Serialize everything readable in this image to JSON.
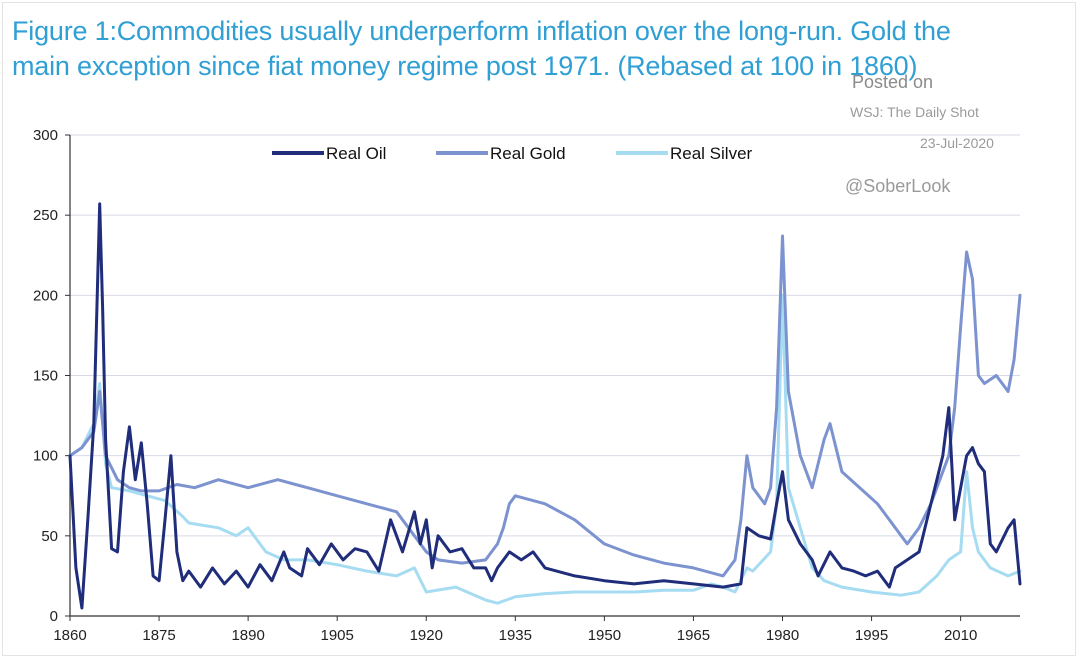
{
  "title_line1": "Figure 1:Commodities usually underperform inflation over the long-run. Gold the",
  "title_line2": "main exception since fiat money regime post 1971. (Rebased at 100 in 1860)",
  "watermark": {
    "posted": "Posted on",
    "source": "WSJ: The Daily Shot",
    "date": "23-Jul-2020",
    "handle": "@SoberLook"
  },
  "colors": {
    "oil": "#1f2d7a",
    "gold": "#7c93cf",
    "silver": "#a6dcf2",
    "grid": "#d7d9e6",
    "title": "#2f9fd4"
  },
  "chart_data": {
    "type": "line",
    "title": "Figure 1:Commodities usually underperform inflation over the long-run. Gold the main exception since fiat money regime post 1971. (Rebased at 100 in 1860)",
    "xlabel": "",
    "ylabel": "",
    "xlim": [
      1860,
      2020
    ],
    "ylim": [
      0,
      300
    ],
    "yticks": [
      0,
      50,
      100,
      150,
      200,
      250,
      300
    ],
    "xticks": [
      1860,
      1875,
      1890,
      1905,
      1920,
      1935,
      1950,
      1965,
      1980,
      1995,
      2010
    ],
    "grid": "horizontal",
    "legend": "top-center",
    "series": [
      {
        "name": "Real Oil",
        "x": [
          1860,
          1861,
          1862,
          1863,
          1864,
          1865,
          1865.5,
          1866,
          1867,
          1868,
          1869,
          1870,
          1871,
          1872,
          1873,
          1874,
          1875,
          1876,
          1877,
          1878,
          1879,
          1880,
          1882,
          1884,
          1886,
          1888,
          1890,
          1892,
          1894,
          1896,
          1897,
          1899,
          1900,
          1902,
          1904,
          1906,
          1908,
          1910,
          1912,
          1914,
          1916,
          1918,
          1919,
          1920,
          1921,
          1922,
          1924,
          1926,
          1928,
          1930,
          1931,
          1932,
          1934,
          1936,
          1938,
          1940,
          1945,
          1950,
          1955,
          1960,
          1965,
          1970,
          1973,
          1974,
          1976,
          1978,
          1979,
          1980,
          1981,
          1983,
          1985,
          1986,
          1988,
          1990,
          1992,
          1994,
          1996,
          1998,
          1999,
          2001,
          2003,
          2005,
          2007,
          2008,
          2009,
          2011,
          2012,
          2013,
          2014,
          2015,
          2016,
          2018,
          2019,
          2020
        ],
        "values": [
          100,
          30,
          5,
          60,
          120,
          257,
          190,
          110,
          42,
          40,
          90,
          118,
          85,
          108,
          70,
          25,
          22,
          60,
          100,
          40,
          22,
          28,
          18,
          30,
          20,
          28,
          18,
          32,
          22,
          40,
          30,
          25,
          42,
          32,
          45,
          35,
          42,
          40,
          28,
          60,
          40,
          65,
          45,
          60,
          30,
          50,
          40,
          42,
          30,
          30,
          22,
          30,
          40,
          35,
          40,
          30,
          25,
          22,
          20,
          22,
          20,
          18,
          20,
          55,
          50,
          48,
          70,
          90,
          60,
          45,
          35,
          25,
          40,
          30,
          28,
          25,
          28,
          18,
          30,
          35,
          40,
          70,
          100,
          130,
          60,
          100,
          105,
          95,
          90,
          45,
          40,
          55,
          60,
          20
        ]
      },
      {
        "name": "Real Gold",
        "x": [
          1860,
          1862,
          1864,
          1865,
          1866,
          1868,
          1870,
          1872,
          1875,
          1878,
          1881,
          1885,
          1890,
          1895,
          1898,
          1900,
          1905,
          1910,
          1915,
          1918,
          1920,
          1922,
          1926,
          1930,
          1932,
          1933,
          1934,
          1935,
          1940,
          1945,
          1950,
          1955,
          1960,
          1965,
          1970,
          1972,
          1973,
          1974,
          1975,
          1977,
          1978,
          1979,
          1980,
          1981,
          1983,
          1985,
          1987,
          1988,
          1990,
          1993,
          1996,
          1999,
          2001,
          2003,
          2005,
          2007,
          2008,
          2009,
          2010,
          2011,
          2012,
          2013,
          2014,
          2016,
          2018,
          2019,
          2020
        ],
        "values": [
          100,
          105,
          115,
          140,
          100,
          85,
          80,
          78,
          78,
          82,
          80,
          85,
          80,
          85,
          82,
          80,
          75,
          70,
          65,
          50,
          40,
          35,
          33,
          35,
          45,
          55,
          70,
          75,
          70,
          60,
          45,
          38,
          33,
          30,
          25,
          35,
          60,
          100,
          80,
          70,
          80,
          130,
          237,
          140,
          100,
          80,
          110,
          120,
          90,
          80,
          70,
          55,
          45,
          55,
          70,
          90,
          100,
          130,
          180,
          227,
          210,
          150,
          145,
          150,
          140,
          160,
          200
        ]
      },
      {
        "name": "Real Silver",
        "x": [
          1860,
          1862,
          1864,
          1865,
          1866,
          1867,
          1870,
          1873,
          1876,
          1879,
          1880,
          1885,
          1888,
          1890,
          1893,
          1896,
          1900,
          1905,
          1910,
          1915,
          1918,
          1920,
          1925,
          1930,
          1932,
          1935,
          1940,
          1945,
          1950,
          1955,
          1960,
          1965,
          1968,
          1970,
          1972,
          1974,
          1975,
          1978,
          1979,
          1980,
          1981,
          1983,
          1985,
          1987,
          1990,
          1995,
          2000,
          2003,
          2006,
          2008,
          2010,
          2011,
          2012,
          2013,
          2015,
          2018,
          2020
        ],
        "values": [
          100,
          105,
          120,
          145,
          95,
          80,
          78,
          75,
          72,
          62,
          58,
          55,
          50,
          55,
          40,
          35,
          35,
          32,
          28,
          25,
          30,
          15,
          18,
          10,
          8,
          12,
          14,
          15,
          15,
          15,
          16,
          16,
          20,
          18,
          15,
          30,
          28,
          40,
          70,
          200,
          80,
          55,
          30,
          22,
          18,
          15,
          13,
          15,
          25,
          35,
          40,
          90,
          55,
          40,
          30,
          25,
          28
        ]
      }
    ]
  }
}
